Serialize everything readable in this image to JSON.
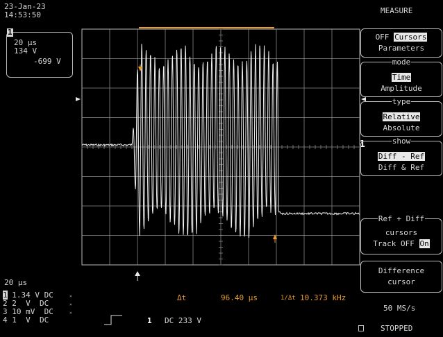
{
  "status": {
    "date": "23-Jan-23",
    "time": "14:53:50"
  },
  "zoom_box": {
    "channel": "1",
    "timebase": "20 μs",
    "volt_line1": "134 V",
    "volt_line2": "-699 V"
  },
  "menu": {
    "title": "MEASURE",
    "btn1": {
      "off": "OFF",
      "cursors": "Cursors",
      "parameters": "Parameters"
    },
    "mode": {
      "label": "mode",
      "time": "Time",
      "amplitude": "Amplitude"
    },
    "type": {
      "label": "type",
      "relative": "Relative",
      "absolute": "Absolute"
    },
    "show": {
      "label": "show",
      "diff_ref": "Diff - Ref",
      "diff_and_ref": "Diff & Ref"
    },
    "track": {
      "line1": "Ref + Diff",
      "line2": "cursors",
      "track_label": "Track",
      "off": "OFF",
      "on": "On"
    },
    "difference": {
      "line1": "Difference",
      "line2": "cursor"
    }
  },
  "bottom": {
    "timebase": "20 μs",
    "channels": [
      {
        "num": "1",
        "text": "1.34 V DC"
      },
      {
        "num": "2",
        "text": "2  V  DC"
      },
      {
        "num": "3",
        "text": "10 mV  DC"
      },
      {
        "num": "4",
        "text": "1  V  DC"
      }
    ],
    "trigger_channel": "1",
    "trigger_setting": "DC 233 V",
    "delta_t_label": "Δt",
    "delta_t_value": "96.40 μs",
    "freq_label": "1/Δt",
    "freq_value": "10.373 kHz",
    "sample_rate": "50 MS/s",
    "state": "STOPPED"
  },
  "colors": {
    "trace": "#f0f0f0",
    "grid": "#8a8a8a",
    "cursor": "#e89a2a",
    "frame": "#bdbdbd"
  },
  "ground_marker": "1"
}
